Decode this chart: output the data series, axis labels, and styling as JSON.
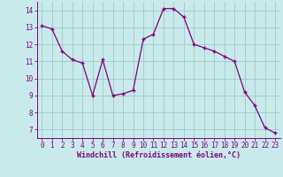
{
  "x": [
    0,
    1,
    2,
    3,
    4,
    5,
    6,
    7,
    8,
    9,
    10,
    11,
    12,
    13,
    14,
    15,
    16,
    17,
    18,
    19,
    20,
    21,
    22,
    23
  ],
  "y": [
    13.1,
    12.9,
    11.6,
    11.1,
    10.9,
    9.0,
    11.1,
    9.0,
    9.1,
    9.3,
    12.3,
    12.6,
    14.1,
    14.1,
    13.6,
    12.0,
    11.8,
    11.6,
    11.3,
    11.0,
    9.2,
    8.4,
    7.1,
    6.8
  ],
  "line_color": "#800080",
  "marker": "+",
  "bg_color": "#c8eaea",
  "grid_color": "#a0c8c8",
  "xlabel": "Windchill (Refroidissement éolien,°C)",
  "xlim": [
    -0.5,
    23.5
  ],
  "ylim": [
    6.5,
    14.5
  ],
  "yticks": [
    7,
    8,
    9,
    10,
    11,
    12,
    13,
    14
  ],
  "xticks": [
    0,
    1,
    2,
    3,
    4,
    5,
    6,
    7,
    8,
    9,
    10,
    11,
    12,
    13,
    14,
    15,
    16,
    17,
    18,
    19,
    20,
    21,
    22,
    23
  ],
  "label_color": "#800080",
  "tick_fontsize": 5.5,
  "label_fontsize": 6.0
}
